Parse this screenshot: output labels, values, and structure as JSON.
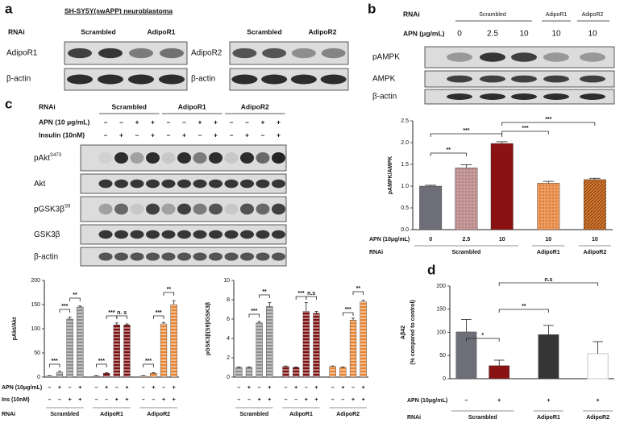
{
  "panel_a": {
    "letter": "a",
    "title": "SH-SY5Y(swAPP) neuroblastoma",
    "rnai": "RNAi",
    "left": {
      "groups": [
        "Scrambled",
        "AdipoR1"
      ],
      "rows": [
        "AdipoR1",
        "β-actin"
      ]
    },
    "right": {
      "groups": [
        "Scrambled",
        "AdipoR2"
      ],
      "rows": [
        "AdipoR2",
        "β-actin"
      ]
    }
  },
  "panel_b": {
    "letter": "b",
    "rnai": "RNAi",
    "groups": [
      "Scrambled",
      "AdipoR1",
      "AdipoR2"
    ],
    "apn_label": "APN (μg/mL)",
    "apn": [
      "0",
      "2.5",
      "10",
      "10",
      "10"
    ],
    "rows": [
      "pAMPK",
      "AMPK",
      "β-actin"
    ]
  },
  "panel_c": {
    "letter": "c",
    "rnai": "RNAi",
    "groups": [
      "Scrambled",
      "AdipoR1",
      "AdipoR2"
    ],
    "apn_label": "APN (10 μg/mL)",
    "apn": [
      "–",
      "–",
      "+",
      "+",
      "–",
      "–",
      "+",
      "+",
      "–",
      "–",
      "+",
      "+"
    ],
    "insulin_label": "Insulin (10nM)",
    "insulin": [
      "–",
      "+",
      "–",
      "+",
      "–",
      "+",
      "–",
      "+",
      "–",
      "+",
      "–",
      "+"
    ],
    "rows": [
      {
        "label": "pAkt",
        "sup": "S473"
      },
      {
        "label": "Akt"
      },
      {
        "label": "pGSK3β",
        "sup": "S9"
      },
      {
        "label": "GSK3β"
      },
      {
        "label": "β-actin"
      }
    ]
  },
  "panel_d": {
    "letter": "d"
  },
  "chart_data": [
    {
      "type": "bar",
      "ylabel": "pAMPK/AMPK",
      "ylim": [
        0,
        2.5
      ],
      "yticks": [
        {
          "value": 0,
          "label": "0.0"
        },
        0.5,
        {
          "value": 1,
          "label": "1.0"
        },
        1.5,
        {
          "value": 2,
          "label": "2.0"
        },
        2.5
      ],
      "row_labels": [
        "APN (10μg/mL)"
      ],
      "group_label": "RNAi",
      "series": [
        {
          "name": "Scrambled",
          "color": [
            "#6e6e78",
            "#c99a9a",
            "#8a1212"
          ],
          "pattern": [
            "solid",
            "dots",
            "solid"
          ],
          "values": [
            1.0,
            1.42,
            1.98
          ],
          "errors": [
            0.02,
            0.07,
            0.04
          ],
          "rows": [
            [
              "0",
              "2.5",
              "10"
            ]
          ]
        },
        {
          "name": "AdipoR1",
          "color": "#f29a5a",
          "pattern": "dots",
          "values": [
            1.07
          ],
          "errors": [
            0.04
          ],
          "rows": [
            [
              "10"
            ]
          ]
        },
        {
          "name": "AdipoR2",
          "color": "#d9772c",
          "pattern": "diagonal",
          "values": [
            1.15
          ],
          "errors": [
            0.03
          ],
          "rows": [
            [
              "10"
            ]
          ]
        }
      ],
      "annotations": [
        "**",
        "***",
        "***",
        "***"
      ]
    },
    {
      "type": "bar",
      "ylabel": "pAkt/Akt",
      "ylim": [
        0,
        200
      ],
      "yticks": [
        0,
        50,
        100,
        150,
        200
      ],
      "row_labels": [
        "APN (10μg/mL)",
        "Ins (10nM)"
      ],
      "group_label": "RNAi",
      "series": [
        {
          "name": "Scrambled",
          "color": "#8e8e8e",
          "pattern": "horizontal",
          "values": [
            2,
            10,
            120,
            145
          ],
          "errors": [
            1,
            2,
            4,
            2
          ],
          "rows": [
            [
              "–",
              "+",
              "–",
              "+"
            ],
            [
              "–",
              "–",
              "+",
              "+"
            ]
          ]
        },
        {
          "name": "AdipoR1",
          "color": "#7d1010",
          "pattern": "horizontal",
          "values": [
            2,
            8,
            108,
            108
          ],
          "errors": [
            1,
            1,
            4,
            2
          ],
          "rows": [
            [
              "–",
              "+",
              "–",
              "+"
            ],
            [
              "–",
              "–",
              "+",
              "+"
            ]
          ]
        },
        {
          "name": "AdipoR2",
          "color": "#ea8430",
          "pattern": "horizontal",
          "values": [
            2,
            8,
            110,
            150
          ],
          "errors": [
            1,
            1,
            3,
            8
          ],
          "rows": [
            [
              "–",
              "+",
              "–",
              "+"
            ],
            [
              "–",
              "–",
              "+",
              "+"
            ]
          ]
        }
      ],
      "annotations": [
        "***",
        "***",
        "**",
        "***",
        "***",
        "n. s",
        "***",
        "***",
        "**"
      ]
    },
    {
      "type": "bar",
      "ylabel": "pGSK3β(S9)/GSK3β",
      "ylim": [
        0,
        10
      ],
      "yticks": [
        0,
        2,
        4,
        6,
        8,
        10
      ],
      "series": [
        {
          "name": "Scrambled",
          "color": "#8e8e8e",
          "pattern": "horizontal",
          "values": [
            1.0,
            1.0,
            5.6,
            7.3
          ],
          "errors": [
            0.05,
            0.05,
            0.15,
            0.4
          ],
          "rows": [
            [
              "–",
              "+",
              "–",
              "+"
            ],
            [
              "–",
              "–",
              "+",
              "+"
            ]
          ]
        },
        {
          "name": "AdipoR1",
          "color": "#7d1010",
          "pattern": "horizontal",
          "values": [
            1.1,
            1.0,
            6.8,
            6.6
          ],
          "errors": [
            0.05,
            0.05,
            0.9,
            0.2
          ],
          "rows": [
            [
              "–",
              "+",
              "–",
              "+"
            ],
            [
              "–",
              "–",
              "+",
              "+"
            ]
          ]
        },
        {
          "name": "AdipoR2",
          "color": "#ea8430",
          "pattern": "horizontal",
          "values": [
            1.1,
            1.0,
            5.9,
            7.8
          ],
          "errors": [
            0.05,
            0.05,
            0.2,
            0.15
          ],
          "rows": [
            [
              "–",
              "+",
              "–",
              "+"
            ],
            [
              "–",
              "–",
              "+",
              "+"
            ]
          ]
        }
      ],
      "annotations": [
        "***",
        "**",
        "***",
        "n.s",
        "***",
        "**"
      ]
    },
    {
      "type": "bar",
      "ylabel": [
        "Aβ42",
        "(% compared to control)"
      ],
      "ylim": [
        0,
        200
      ],
      "yticks": [
        0,
        50,
        100,
        150,
        200
      ],
      "row_labels": [
        "APN (10μg/mL)"
      ],
      "group_label": "RNAi",
      "series": [
        {
          "name": "Scrambled",
          "color": [
            "#6e6e78",
            "#8a1212"
          ],
          "pattern": "solid",
          "values": [
            101,
            28
          ],
          "errors": [
            27,
            12
          ],
          "rows": [
            [
              "–",
              "+"
            ]
          ]
        },
        {
          "name": "AdipoR1",
          "color": "#353535",
          "pattern": "solid",
          "values": [
            95
          ],
          "errors": [
            20
          ],
          "rows": [
            [
              "+"
            ]
          ]
        },
        {
          "name": "AdipoR2",
          "color": "#cfcfcf",
          "pattern": "outline",
          "values": [
            54
          ],
          "errors": [
            26
          ],
          "rows": [
            [
              "+"
            ]
          ]
        }
      ],
      "annotations": [
        "*",
        "**",
        "n.s"
      ]
    }
  ]
}
